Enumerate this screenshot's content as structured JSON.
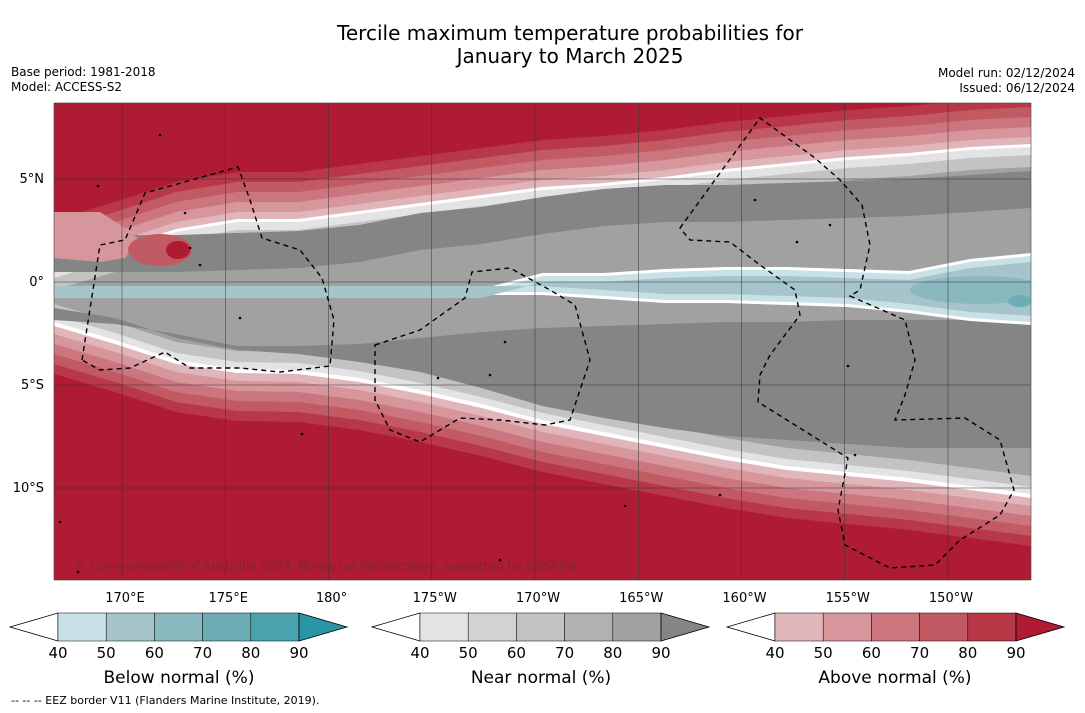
{
  "title_line1": "Tercile maximum temperature probabilities for",
  "title_line2": "January to March 2025",
  "base_period": "Base period: 1981-2018",
  "model": "Model: ACCESS-S2",
  "model_run": "Model run: 02/12/2024",
  "issued": "Issued: 06/12/2024",
  "lat_labels": [
    {
      "label": "5°N",
      "value": 5
    },
    {
      "label": "0°",
      "value": 0
    },
    {
      "label": "5°S",
      "value": -5
    },
    {
      "label": "10°S",
      "value": -10
    }
  ],
  "lon_labels": [
    {
      "label": "170°E",
      "value": 170
    },
    {
      "label": "175°E",
      "value": 175
    },
    {
      "label": "180°",
      "value": 180
    },
    {
      "label": "175°W",
      "value": 185
    },
    {
      "label": "170°W",
      "value": 190
    },
    {
      "label": "165°W",
      "value": 195
    },
    {
      "label": "160°W",
      "value": 200
    },
    {
      "label": "155°W",
      "value": 205
    },
    {
      "label": "150°W",
      "value": 210
    }
  ],
  "copyright": "© Commonwealth of Australia 2024, Bureau of Meteorology, supported by COSPPac",
  "legends": [
    {
      "label": "Below normal (%)",
      "ticks": [
        "40",
        "50",
        "60",
        "70",
        "80",
        "90"
      ],
      "colors": [
        "#c9e1e6",
        "#a6c5cb",
        "#8ab8bf",
        "#6cadb6",
        "#4aa2af",
        "#2a95a6"
      ]
    },
    {
      "label": "Near normal (%)",
      "ticks": [
        "40",
        "50",
        "60",
        "70",
        "80",
        "90"
      ],
      "colors": [
        "#e3e3e3",
        "#d2d2d2",
        "#c3c3c3",
        "#b1b1b1",
        "#a1a1a1",
        "#858585"
      ]
    },
    {
      "label": "Above normal (%)",
      "ticks": [
        "40",
        "50",
        "60",
        "70",
        "80",
        "90"
      ],
      "colors": [
        "#e0b6bb",
        "#d6969c",
        "#cb767e",
        "#c25a63",
        "#b83848",
        "#ae1b32"
      ]
    }
  ],
  "footnote": "-- -- -- EEZ border V11 (Flanders Marine Institute, 2019)."
}
